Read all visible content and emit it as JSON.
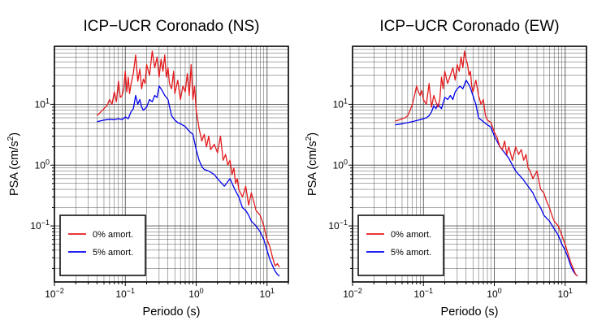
{
  "colors": {
    "series_0": "#e41a1c",
    "series_5": "#0000ee",
    "grid": "#555555"
  },
  "chart_data": [
    {
      "type": "line",
      "title": "ICP−UCR Coronado (NS)",
      "xlabel": "Periodo (s)",
      "ylabel_main": "PSA (cm/s",
      "ylabel_sup": "2",
      "ylabel_end": ")",
      "x_scale": "log",
      "y_scale": "log",
      "xlim": [
        0.01,
        20
      ],
      "ylim": [
        0.012,
        90
      ],
      "grid": true,
      "legend_position": "bottom-left",
      "x_ticks": [
        {
          "base": "10",
          "exp": "−2",
          "value": 0.01
        },
        {
          "base": "10",
          "exp": "−1",
          "value": 0.1
        },
        {
          "base": "10",
          "exp": "0",
          "value": 1
        },
        {
          "base": "10",
          "exp": "1",
          "value": 10
        }
      ],
      "y_ticks": [
        {
          "base": "10",
          "exp": "−1",
          "value": 0.1
        },
        {
          "base": "10",
          "exp": "0",
          "value": 1
        },
        {
          "base": "10",
          "exp": "1",
          "value": 10
        }
      ],
      "series": [
        {
          "name": "0% amort.",
          "color": "#e41a1c",
          "x": [
            0.04,
            0.045,
            0.05,
            0.055,
            0.06,
            0.065,
            0.07,
            0.075,
            0.08,
            0.085,
            0.09,
            0.095,
            0.1,
            0.105,
            0.11,
            0.115,
            0.12,
            0.13,
            0.14,
            0.15,
            0.16,
            0.17,
            0.18,
            0.19,
            0.2,
            0.22,
            0.24,
            0.26,
            0.28,
            0.3,
            0.32,
            0.34,
            0.36,
            0.38,
            0.4,
            0.42,
            0.45,
            0.48,
            0.5,
            0.55,
            0.6,
            0.65,
            0.7,
            0.75,
            0.8,
            0.85,
            0.9,
            0.95,
            1.0,
            1.1,
            1.2,
            1.3,
            1.4,
            1.5,
            1.6,
            1.8,
            2.0,
            2.2,
            2.4,
            2.6,
            2.8,
            3.0,
            3.2,
            3.4,
            3.6,
            3.8,
            4.0,
            4.5,
            5.0,
            5.5,
            6.0,
            6.5,
            7.0,
            8.0,
            9.0,
            10.0,
            11.0,
            12.0,
            13.0,
            14.0,
            15.0
          ],
          "y": [
            6.5,
            7.5,
            8.5,
            9.5,
            12,
            10,
            16,
            11,
            24,
            13,
            14,
            18,
            35,
            16,
            28,
            15,
            21,
            33,
            65,
            24,
            38,
            18,
            26,
            22,
            45,
            30,
            75,
            40,
            60,
            28,
            55,
            35,
            65,
            28,
            40,
            22,
            18,
            35,
            15,
            25,
            12,
            20,
            16,
            32,
            14,
            45,
            12,
            20,
            8,
            4.0,
            2.5,
            3.2,
            2.0,
            3.0,
            1.8,
            2.2,
            1.6,
            3.0,
            1.2,
            1.5,
            1.0,
            1.2,
            0.7,
            0.9,
            0.5,
            0.6,
            0.4,
            0.3,
            0.45,
            0.22,
            0.35,
            0.25,
            0.18,
            0.15,
            0.1,
            0.06,
            0.045,
            0.03,
            0.022,
            0.024,
            0.021
          ]
        },
        {
          "name": "5% amort.",
          "color": "#0000ee",
          "x": [
            0.04,
            0.05,
            0.06,
            0.07,
            0.08,
            0.09,
            0.1,
            0.11,
            0.12,
            0.13,
            0.14,
            0.15,
            0.16,
            0.17,
            0.18,
            0.2,
            0.22,
            0.24,
            0.26,
            0.28,
            0.3,
            0.33,
            0.36,
            0.4,
            0.45,
            0.5,
            0.55,
            0.6,
            0.7,
            0.8,
            0.9,
            1.0,
            1.1,
            1.2,
            1.3,
            1.5,
            1.8,
            2.0,
            2.5,
            3.0,
            3.5,
            4.0,
            4.5,
            5.0,
            5.5,
            6.0,
            7.0,
            8.0,
            9.0,
            10.0,
            11.0,
            12.0,
            13.0,
            14.0,
            15.0
          ],
          "y": [
            5.2,
            5.5,
            5.7,
            5.6,
            5.8,
            5.6,
            6.2,
            5.8,
            7.5,
            8.5,
            14,
            10,
            12,
            9,
            8,
            9,
            12,
            11,
            14,
            13,
            20,
            17,
            14,
            12,
            6.5,
            5.5,
            5.0,
            4.8,
            4.3,
            3.6,
            3.2,
            1.8,
            1.2,
            0.95,
            0.85,
            0.8,
            0.7,
            0.6,
            0.45,
            0.6,
            0.4,
            0.3,
            0.2,
            0.18,
            0.15,
            0.12,
            0.1,
            0.08,
            0.06,
            0.04,
            0.028,
            0.022,
            0.018,
            0.016,
            0.015
          ]
        }
      ]
    },
    {
      "type": "line",
      "title": "ICP−UCR Coronado (EW)",
      "xlabel": "Periodo (s)",
      "ylabel_main": "PSA (cm/s",
      "ylabel_sup": "2",
      "ylabel_end": ")",
      "x_scale": "log",
      "y_scale": "log",
      "xlim": [
        0.01,
        20
      ],
      "ylim": [
        0.012,
        90
      ],
      "grid": true,
      "legend_position": "bottom-left",
      "x_ticks": [
        {
          "base": "10",
          "exp": "−2",
          "value": 0.01
        },
        {
          "base": "10",
          "exp": "−1",
          "value": 0.1
        },
        {
          "base": "10",
          "exp": "0",
          "value": 1
        },
        {
          "base": "10",
          "exp": "1",
          "value": 10
        }
      ],
      "y_ticks": [
        {
          "base": "10",
          "exp": "−1",
          "value": 0.1
        },
        {
          "base": "10",
          "exp": "0",
          "value": 1
        },
        {
          "base": "10",
          "exp": "1",
          "value": 10
        }
      ],
      "series": [
        {
          "name": "0% amort.",
          "color": "#e41a1c",
          "x": [
            0.04,
            0.045,
            0.05,
            0.055,
            0.06,
            0.065,
            0.07,
            0.075,
            0.08,
            0.085,
            0.09,
            0.095,
            0.1,
            0.11,
            0.12,
            0.13,
            0.14,
            0.15,
            0.16,
            0.17,
            0.18,
            0.19,
            0.2,
            0.22,
            0.24,
            0.26,
            0.28,
            0.3,
            0.32,
            0.34,
            0.36,
            0.38,
            0.4,
            0.42,
            0.44,
            0.46,
            0.48,
            0.5,
            0.55,
            0.6,
            0.65,
            0.7,
            0.75,
            0.8,
            0.9,
            1.0,
            1.1,
            1.2,
            1.3,
            1.4,
            1.5,
            1.6,
            1.8,
            2.0,
            2.2,
            2.4,
            2.6,
            2.8,
            3.0,
            3.2,
            3.5,
            4.0,
            4.5,
            5.0,
            5.5,
            6.0,
            6.5,
            7.0,
            8.0,
            9.0,
            10.0,
            11.0,
            12.0,
            13.0,
            14.0,
            15.0
          ],
          "y": [
            5.3,
            5.5,
            5.8,
            6,
            6.5,
            8,
            10,
            14,
            20,
            16,
            14,
            17,
            12,
            10,
            22,
            9,
            14,
            11,
            9,
            12,
            28,
            18,
            35,
            22,
            30,
            40,
            25,
            45,
            35,
            60,
            40,
            75,
            55,
            45,
            30,
            35,
            20,
            16,
            25,
            14,
            10,
            12,
            6.5,
            5.5,
            5.0,
            3.5,
            2.8,
            2.0,
            1.8,
            2.5,
            1.5,
            2.0,
            1.2,
            2.0,
            1.5,
            1.8,
            1.2,
            1.5,
            0.9,
            0.8,
            0.6,
            0.8,
            0.4,
            0.35,
            0.25,
            0.2,
            0.15,
            0.12,
            0.1,
            0.07,
            0.05,
            0.035,
            0.025,
            0.02,
            0.016,
            0.015
          ]
        },
        {
          "name": "5% amort.",
          "color": "#0000ee",
          "x": [
            0.04,
            0.05,
            0.06,
            0.07,
            0.08,
            0.09,
            0.1,
            0.11,
            0.12,
            0.13,
            0.14,
            0.15,
            0.16,
            0.18,
            0.2,
            0.22,
            0.24,
            0.26,
            0.28,
            0.3,
            0.33,
            0.36,
            0.4,
            0.45,
            0.5,
            0.55,
            0.6,
            0.7,
            0.8,
            0.9,
            1.0,
            1.2,
            1.4,
            1.6,
            1.8,
            2.0,
            2.5,
            3.0,
            3.5,
            4.0,
            4.5,
            5.0,
            6.0,
            7.0,
            8.0,
            9.0,
            10.0,
            11.0,
            12.0,
            13.0,
            14.0,
            15.0
          ],
          "y": [
            4.6,
            4.8,
            5.0,
            5.2,
            5.4,
            5.6,
            5.8,
            6.0,
            6.5,
            7.5,
            9.5,
            8.5,
            10,
            8.5,
            13,
            12,
            14,
            12,
            16,
            18,
            20,
            18,
            25,
            20,
            14,
            10,
            6,
            5.2,
            4.6,
            4.2,
            3.0,
            2.0,
            1.6,
            1.3,
            1.0,
            0.8,
            0.6,
            0.45,
            0.35,
            0.25,
            0.2,
            0.15,
            0.12,
            0.09,
            0.07,
            0.05,
            0.04,
            0.03,
            0.022,
            0.018,
            0.016,
            0.015
          ]
        }
      ]
    }
  ]
}
